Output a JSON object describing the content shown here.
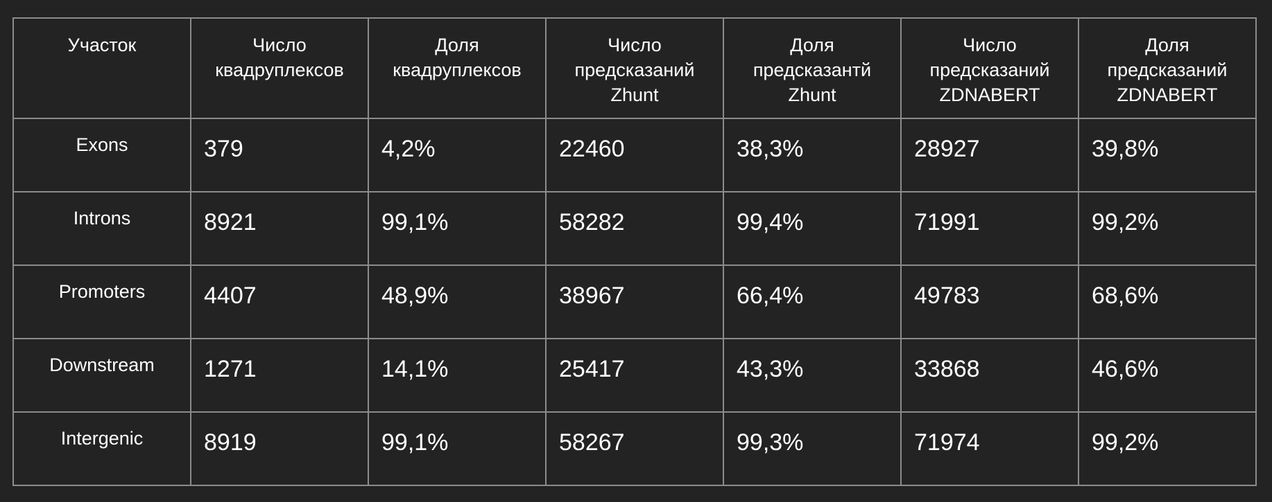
{
  "table": {
    "headers": [
      "Участок",
      "Число\nквадруплексов",
      "Доля\nквадруплексов",
      "Число\nпредсказаний\nZhunt",
      "Доля\nпредсказантй\nZhunt",
      "Число\nпредсказаний\nZDNABERT",
      "Доля\nпредсказаний\nZDNABERT"
    ],
    "rows": [
      [
        "Exons",
        "379",
        "4,2%",
        "22460",
        "38,3%",
        "28927",
        "39,8%"
      ],
      [
        "Introns",
        "8921",
        "99,1%",
        "58282",
        "99,4%",
        "71991",
        "99,2%"
      ],
      [
        "Promoters",
        "4407",
        "48,9%",
        "38967",
        "66,4%",
        "49783",
        "68,6%"
      ],
      [
        "Downstream",
        "1271",
        "14,1%",
        "25417",
        "43,3%",
        "33868",
        "46,6%"
      ],
      [
        "Intergenic",
        "8919",
        "99,1%",
        "58267",
        "99,3%",
        "71974",
        "99,2%"
      ]
    ]
  }
}
